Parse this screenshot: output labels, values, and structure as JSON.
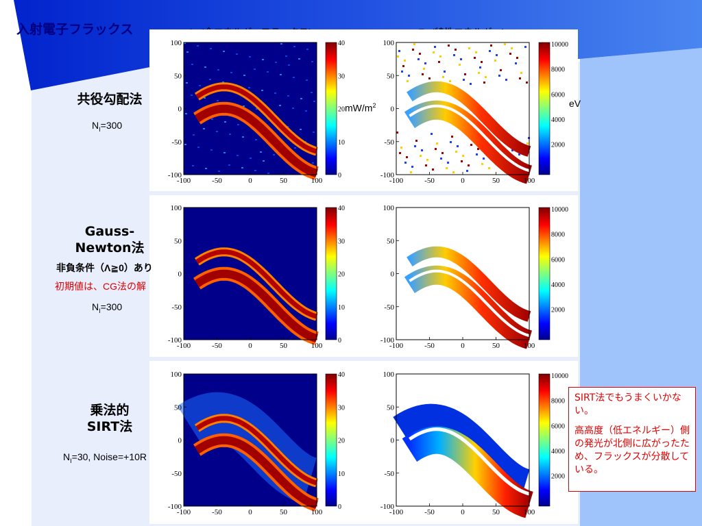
{
  "title": "入射電子フラックス",
  "columns": {
    "q0": {
      "symbol": "Q",
      "sub": "0",
      "label": " (全エネルギーフラックス)"
    },
    "ep": {
      "symbol": "E",
      "sub": "P",
      "label": " (特性エネルギー)"
    }
  },
  "units": {
    "flux_base": "mW/m",
    "flux_sup": "2",
    "energy": "eV"
  },
  "axis_ticks": [
    "-100",
    "-50",
    "0",
    "50",
    "100"
  ],
  "flux_colorbar_ticks": [
    "40",
    "30",
    "20",
    "10",
    "0"
  ],
  "energy_colorbar_ticks": [
    "10000",
    "8000",
    "6000",
    "4000",
    "2000"
  ],
  "rows": [
    {
      "method": "共役勾配法",
      "ni_prefix": "N",
      "ni_sub": "I",
      "ni_suffix": "=300"
    },
    {
      "method_line1": "Gauss-",
      "method_line2": "Newton法",
      "constraint": "非負条件（Λ≧0）あり",
      "initial": "初期値は、CG法の解",
      "ni_prefix": "N",
      "ni_sub": "I",
      "ni_suffix": "=300"
    },
    {
      "method_line1": "乗法的",
      "method_line2": "SIRT法",
      "ni_prefix": "N",
      "ni_sub": "I",
      "ni_suffix": "=30, Noise=+10R"
    }
  ],
  "callout": {
    "line1": "SIRT法でもうまくいかない。",
    "line2": "高高度（低エネルギー）側の発光が北側に広がったため、フラックスが分散している。"
  },
  "colors": {
    "title": "#000080",
    "accent_red": "#e00000",
    "flux_background": "#00008b"
  }
}
